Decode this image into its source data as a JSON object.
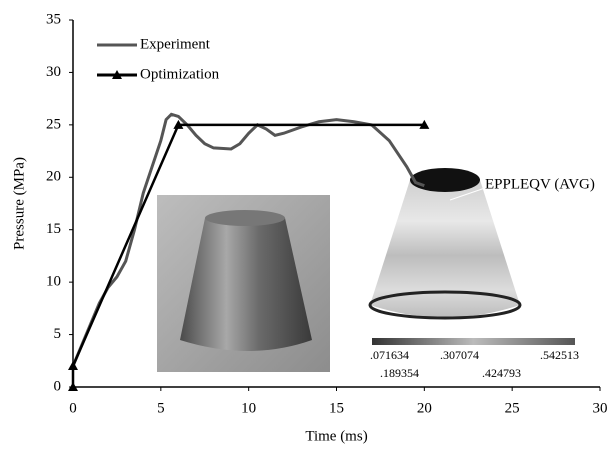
{
  "chart_data": {
    "type": "line",
    "x_label": "Time (ms)",
    "y_label": "Pressure (MPa)",
    "xlim": [
      0,
      30
    ],
    "xticks": [
      0,
      5,
      10,
      15,
      20,
      25,
      30
    ],
    "ylim": [
      0,
      35
    ],
    "yticks": [
      0,
      5,
      10,
      15,
      20,
      25,
      30,
      35
    ],
    "grid": false,
    "legend": "upper-left",
    "series": [
      {
        "name": "Experiment",
        "color": "#555555",
        "marker": "none",
        "x": [
          0,
          0.5,
          1,
          1.5,
          2,
          2.5,
          3,
          3.5,
          4,
          4.5,
          5,
          5.3,
          5.6,
          6,
          6.5,
          7,
          7.5,
          8,
          9,
          9.5,
          10,
          10.5,
          11,
          11.5,
          12,
          13,
          14,
          15,
          16,
          17,
          18,
          19,
          19.5,
          20
        ],
        "values": [
          2,
          4,
          6,
          8,
          9.5,
          10.5,
          12,
          15,
          18.5,
          21,
          23.5,
          25.5,
          26,
          25.8,
          25,
          24,
          23.2,
          22.8,
          22.7,
          23.2,
          24.2,
          25,
          24.6,
          24,
          24.2,
          24.8,
          25.3,
          25.5,
          25.3,
          25,
          23.5,
          21,
          19.5,
          19.2
        ]
      },
      {
        "name": "Optimization",
        "color": "#000000",
        "marker": "triangle",
        "x": [
          0,
          0,
          6,
          20
        ],
        "values": [
          0,
          2,
          25,
          25
        ]
      }
    ],
    "annotations": [
      "EPPLEQV (AVG)",
      ".071634",
      ".189354",
      ".307074",
      ".424793",
      ".542513"
    ]
  }
}
